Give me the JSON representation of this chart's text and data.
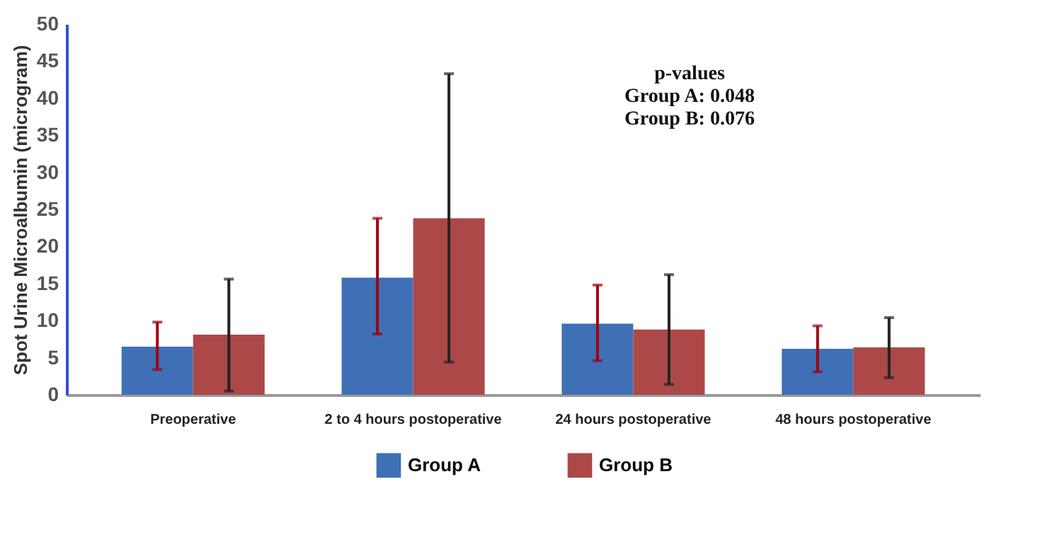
{
  "chart_data": {
    "type": "bar",
    "ylabel": "Spot Urine Microalbumin (microgram)",
    "categories": [
      "Preoperative",
      "2 to 4 hours postoperative",
      "24 hours postoperative",
      "48 hours postoperative"
    ],
    "series": [
      {
        "name": "Group A",
        "color": "#3f70b6",
        "values": [
          6.5,
          15.8,
          9.6,
          6.2
        ],
        "errors": [
          [
            3.4,
            9.8
          ],
          [
            8.2,
            23.8
          ],
          [
            4.6,
            14.8
          ],
          [
            3.1,
            9.3
          ]
        ]
      },
      {
        "name": "Group B",
        "color": "#ac4848",
        "values": [
          8.1,
          23.8,
          8.8,
          6.4
        ],
        "errors": [
          [
            0.5,
            15.6
          ],
          [
            4.4,
            43.3
          ],
          [
            1.4,
            16.2
          ],
          [
            2.3,
            10.4
          ]
        ]
      }
    ],
    "ylim": [
      0,
      50
    ],
    "yticks": [
      0,
      5,
      10,
      15,
      20,
      25,
      30,
      35,
      40,
      45,
      50
    ],
    "grid": false,
    "legend": "bottom",
    "annotations": [
      "p-values",
      "Group A: 0.048",
      "Group B: 0.076"
    ]
  }
}
